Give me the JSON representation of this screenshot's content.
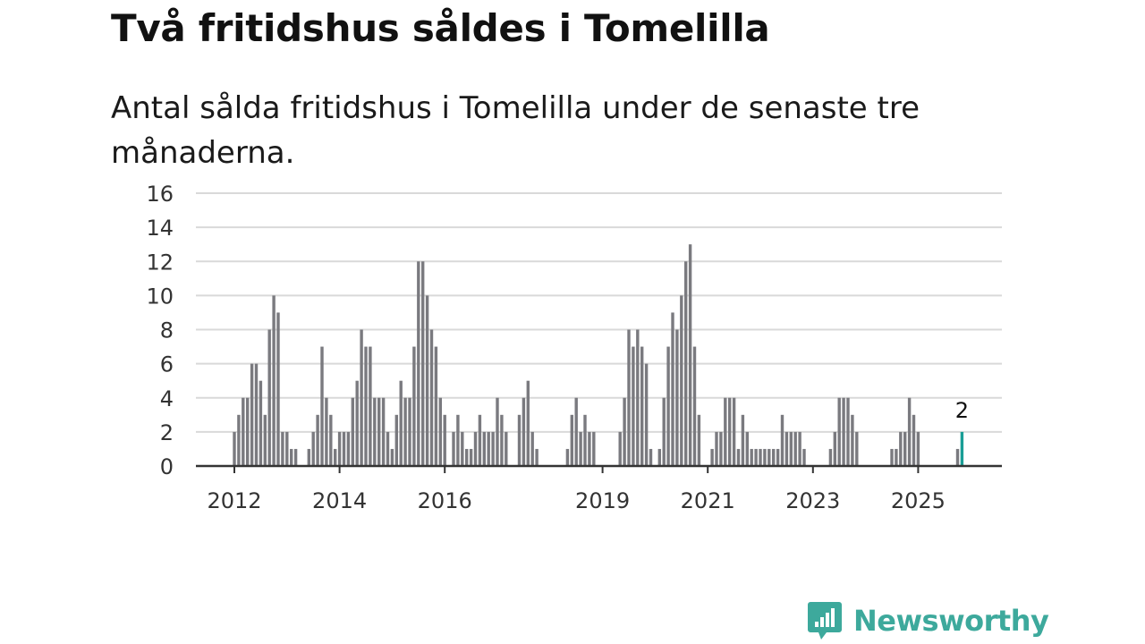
{
  "title": "Två fritidshus såldes i Tomelilla",
  "subtitle": "Antal sålda fritidshus i Tomelilla under de senaste tre månaderna.",
  "brand": {
    "name": "Newsworthy",
    "icon": "bar-chart-speech-bubble-icon",
    "color": "#3da99c"
  },
  "chart_data": {
    "type": "bar",
    "title": "Antal sålda fritidshus i Tomelilla under de senaste tre månaderna.",
    "xlabel": "",
    "ylabel": "",
    "ylim": [
      0,
      16
    ],
    "yticks": [
      0,
      2,
      4,
      6,
      8,
      10,
      12,
      14,
      16
    ],
    "xticks": [
      {
        "label": "2012",
        "index": 0
      },
      {
        "label": "2014",
        "index": 24
      },
      {
        "label": "2016",
        "index": 48
      },
      {
        "label": "2019",
        "index": 84
      },
      {
        "label": "2021",
        "index": 108
      },
      {
        "label": "2023",
        "index": 132
      },
      {
        "label": "2025",
        "index": 156
      }
    ],
    "colors": {
      "bar": "#7a7a7f",
      "highlight": "#1a9e96",
      "grid": "#d9d9d9",
      "axis": "#333333"
    },
    "highlight_index": 166,
    "annotation": {
      "index": 166,
      "text": "2"
    },
    "values": [
      2,
      3,
      4,
      4,
      6,
      6,
      5,
      3,
      8,
      10,
      9,
      2,
      2,
      1,
      1,
      0,
      0,
      1,
      2,
      3,
      7,
      4,
      3,
      1,
      2,
      2,
      2,
      4,
      5,
      8,
      7,
      7,
      4,
      4,
      4,
      2,
      1,
      3,
      5,
      4,
      4,
      7,
      12,
      12,
      10,
      8,
      7,
      4,
      3,
      0,
      2,
      3,
      2,
      1,
      1,
      2,
      3,
      2,
      2,
      2,
      4,
      3,
      2,
      0,
      0,
      3,
      4,
      5,
      2,
      1,
      0,
      0,
      0,
      0,
      0,
      0,
      1,
      3,
      4,
      2,
      3,
      2,
      2,
      0,
      0,
      0,
      0,
      0,
      2,
      4,
      8,
      7,
      8,
      7,
      6,
      1,
      0,
      1,
      4,
      7,
      9,
      8,
      10,
      12,
      13,
      7,
      3,
      0,
      0,
      1,
      2,
      2,
      4,
      4,
      4,
      1,
      3,
      2,
      1,
      1,
      1,
      1,
      1,
      1,
      1,
      3,
      2,
      2,
      2,
      2,
      1,
      0,
      0,
      0,
      0,
      0,
      1,
      2,
      4,
      4,
      4,
      3,
      2,
      0,
      0,
      0,
      0,
      0,
      0,
      0,
      1,
      1,
      2,
      2,
      4,
      3,
      2,
      0,
      0,
      0,
      0,
      0,
      0,
      0,
      0,
      1,
      2
    ]
  }
}
